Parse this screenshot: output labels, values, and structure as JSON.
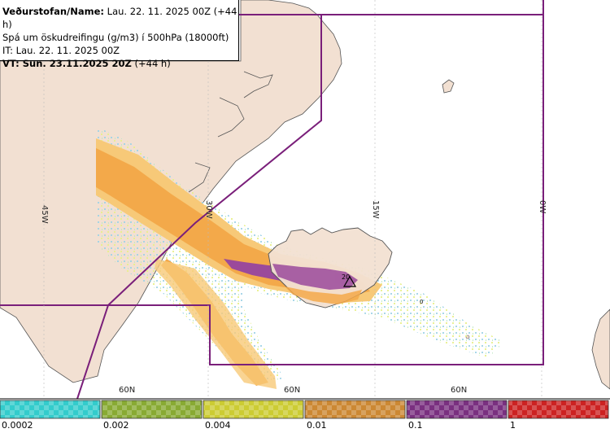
{
  "header": {
    "line1_bold": "Veðurstofan/Name:",
    "line1_rest": " Lau. 22. 11. 2025 00Z (+44 h)",
    "line2": "Spá um öskudreifingu (g/m3) í 500hPa (18000ft)",
    "line3": "IT: Lau. 22. 11. 2025 00Z",
    "line4_bold": "VT: Sun. 23.11.2025 20Z",
    "line4_rest": " (+44 h)"
  },
  "graticule": {
    "longitudes": [
      "45W",
      "30W",
      "15W",
      "0W"
    ],
    "latitudes": [
      "60N",
      "60N",
      "60N"
    ]
  },
  "map_marks": {
    "contour_label_20": "20",
    "contour_label_0": "0"
  },
  "legend": {
    "bins": [
      {
        "color": "#33cccc",
        "label": "0.0002"
      },
      {
        "color": "#88aa33",
        "label": "0.002"
      },
      {
        "color": "#cccc33",
        "label": "0.004"
      },
      {
        "color": "#cc8833",
        "label": "0.01"
      },
      {
        "color": "#7a3080",
        "label": "0.1"
      },
      {
        "color": "#cc2222",
        "label": "1"
      }
    ]
  },
  "colors": {
    "ocean": "#ffffff",
    "land": "#f2e0d2",
    "coast": "#555555",
    "boundary": "#7a1f7a",
    "ash_light": "#f7c978",
    "ash_medium": "#f3a94a",
    "ash_high": "#9b4a9b",
    "ash_peak": "#e8477a"
  }
}
